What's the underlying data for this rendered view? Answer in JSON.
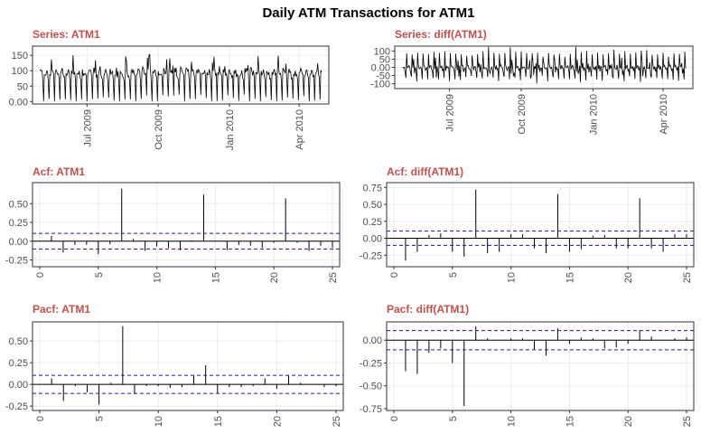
{
  "figure": {
    "title": "Daily ATM Transactions for ATM1"
  },
  "colors": {
    "panel_title": "#c0504d",
    "ci_line": "#1a1aa6",
    "grid": "#ebebeb",
    "series": "#000000",
    "axis_text": "#4d4d4d"
  },
  "chart_data": [
    {
      "id": "series-atm1",
      "type": "line",
      "title": "Series: ATM1",
      "x_ticks": [
        "Jul 2009",
        "Oct 2009",
        "Jan 2010",
        "Apr 2010"
      ],
      "x_tick_dates": [
        "2009-07-01",
        "2009-10-01",
        "2010-01-01",
        "2010-04-01"
      ],
      "x_start": "2009-05-01",
      "x_end": "2010-04-30",
      "y_ticks": [
        0,
        50,
        100,
        150
      ],
      "ylim": [
        -8,
        180
      ],
      "weekly_pattern": [
        98,
        102,
        94,
        88,
        78,
        8,
        96
      ],
      "noise_amplitude": 15,
      "grid": true
    },
    {
      "id": "series-diff",
      "type": "line",
      "title": "Series: diff(ATM1)",
      "x_ticks": [
        "Jul 2009",
        "Oct 2009",
        "Jan 2010",
        "Apr 2010"
      ],
      "x_tick_dates": [
        "2009-07-01",
        "2009-10-01",
        "2010-01-01",
        "2010-04-01"
      ],
      "x_start": "2009-05-01",
      "x_end": "2010-04-30",
      "y_ticks": [
        -100,
        -50,
        0,
        50,
        100
      ],
      "ylim": [
        -130,
        130
      ],
      "grid": true
    },
    {
      "id": "acf-atm1",
      "type": "bar",
      "title": "Acf: ATM1",
      "lags": [
        1,
        2,
        3,
        4,
        5,
        6,
        7,
        8,
        9,
        10,
        11,
        12,
        13,
        14,
        15,
        16,
        17,
        18,
        19,
        20,
        21,
        22,
        23,
        24,
        25
      ],
      "values": [
        0.07,
        -0.15,
        -0.05,
        -0.05,
        -0.17,
        -0.04,
        0.7,
        0.03,
        -0.13,
        -0.07,
        -0.09,
        -0.12,
        0.01,
        0.62,
        0.01,
        -0.12,
        -0.05,
        -0.06,
        -0.09,
        -0.02,
        0.57,
        -0.02,
        -0.13,
        -0.06,
        -0.09
      ],
      "ci": 0.104,
      "x_ticks": [
        0,
        5,
        10,
        15,
        20,
        25
      ],
      "y_ticks": [
        -0.25,
        0.0,
        0.25,
        0.5
      ],
      "ylim": [
        -0.34,
        0.78
      ],
      "grid": true
    },
    {
      "id": "acf-diff",
      "type": "bar",
      "title": "Acf: diff(ATM1)",
      "lags": [
        1,
        2,
        3,
        4,
        5,
        6,
        7,
        8,
        9,
        10,
        11,
        12,
        13,
        14,
        15,
        16,
        17,
        18,
        19,
        20,
        21,
        22,
        23,
        24,
        25
      ],
      "values": [
        -0.33,
        -0.2,
        0.05,
        0.07,
        -0.2,
        -0.27,
        0.72,
        -0.22,
        -0.2,
        0.06,
        0.06,
        -0.15,
        -0.22,
        0.65,
        -0.2,
        -0.16,
        0.04,
        0.05,
        -0.15,
        -0.15,
        0.59,
        -0.15,
        -0.2,
        0.06,
        0.06
      ],
      "ci": 0.105,
      "x_ticks": [
        0,
        5,
        10,
        15,
        20,
        25
      ],
      "y_ticks": [
        -0.25,
        0.0,
        0.25,
        0.5,
        0.75
      ],
      "ylim": [
        -0.42,
        0.82
      ],
      "grid": true
    },
    {
      "id": "pacf-atm1",
      "type": "bar",
      "title": "Pacf: ATM1",
      "lags": [
        1,
        2,
        3,
        4,
        5,
        6,
        7,
        8,
        9,
        10,
        11,
        12,
        13,
        14,
        15,
        16,
        17,
        18,
        19,
        20,
        21,
        22,
        23,
        24,
        25
      ],
      "values": [
        0.07,
        -0.19,
        -0.02,
        -0.09,
        -0.23,
        0.02,
        0.67,
        -0.11,
        -0.02,
        -0.02,
        -0.04,
        -0.03,
        0.1,
        0.22,
        -0.1,
        -0.03,
        -0.03,
        -0.02,
        0.07,
        -0.05,
        0.1,
        0.02,
        0.0,
        -0.03,
        -0.02
      ],
      "ci": 0.104,
      "x_ticks": [
        0,
        5,
        10,
        15,
        20,
        25
      ],
      "y_ticks": [
        -0.25,
        0.0,
        0.25,
        0.5
      ],
      "ylim": [
        -0.3,
        0.72
      ],
      "grid": true
    },
    {
      "id": "pacf-diff",
      "type": "bar",
      "title": "Pacf: diff(ATM1)",
      "lags": [
        1,
        2,
        3,
        4,
        5,
        6,
        7,
        8,
        9,
        10,
        11,
        12,
        13,
        14,
        15,
        16,
        17,
        18,
        19,
        20,
        21,
        22,
        23,
        24,
        25
      ],
      "values": [
        -0.34,
        -0.37,
        -0.14,
        -0.09,
        -0.25,
        -0.72,
        0.15,
        0.02,
        0.0,
        0.02,
        0.02,
        -0.1,
        -0.17,
        0.13,
        -0.04,
        0.03,
        0.02,
        -0.09,
        -0.08,
        -0.04,
        0.11,
        0.04,
        0.0,
        0.02,
        0.03
      ],
      "ci": 0.105,
      "x_ticks": [
        0,
        5,
        10,
        15,
        20,
        25
      ],
      "y_ticks": [
        -0.75,
        -0.5,
        -0.25,
        0.0
      ],
      "ylim": [
        -0.77,
        0.2
      ],
      "grid": true
    }
  ]
}
